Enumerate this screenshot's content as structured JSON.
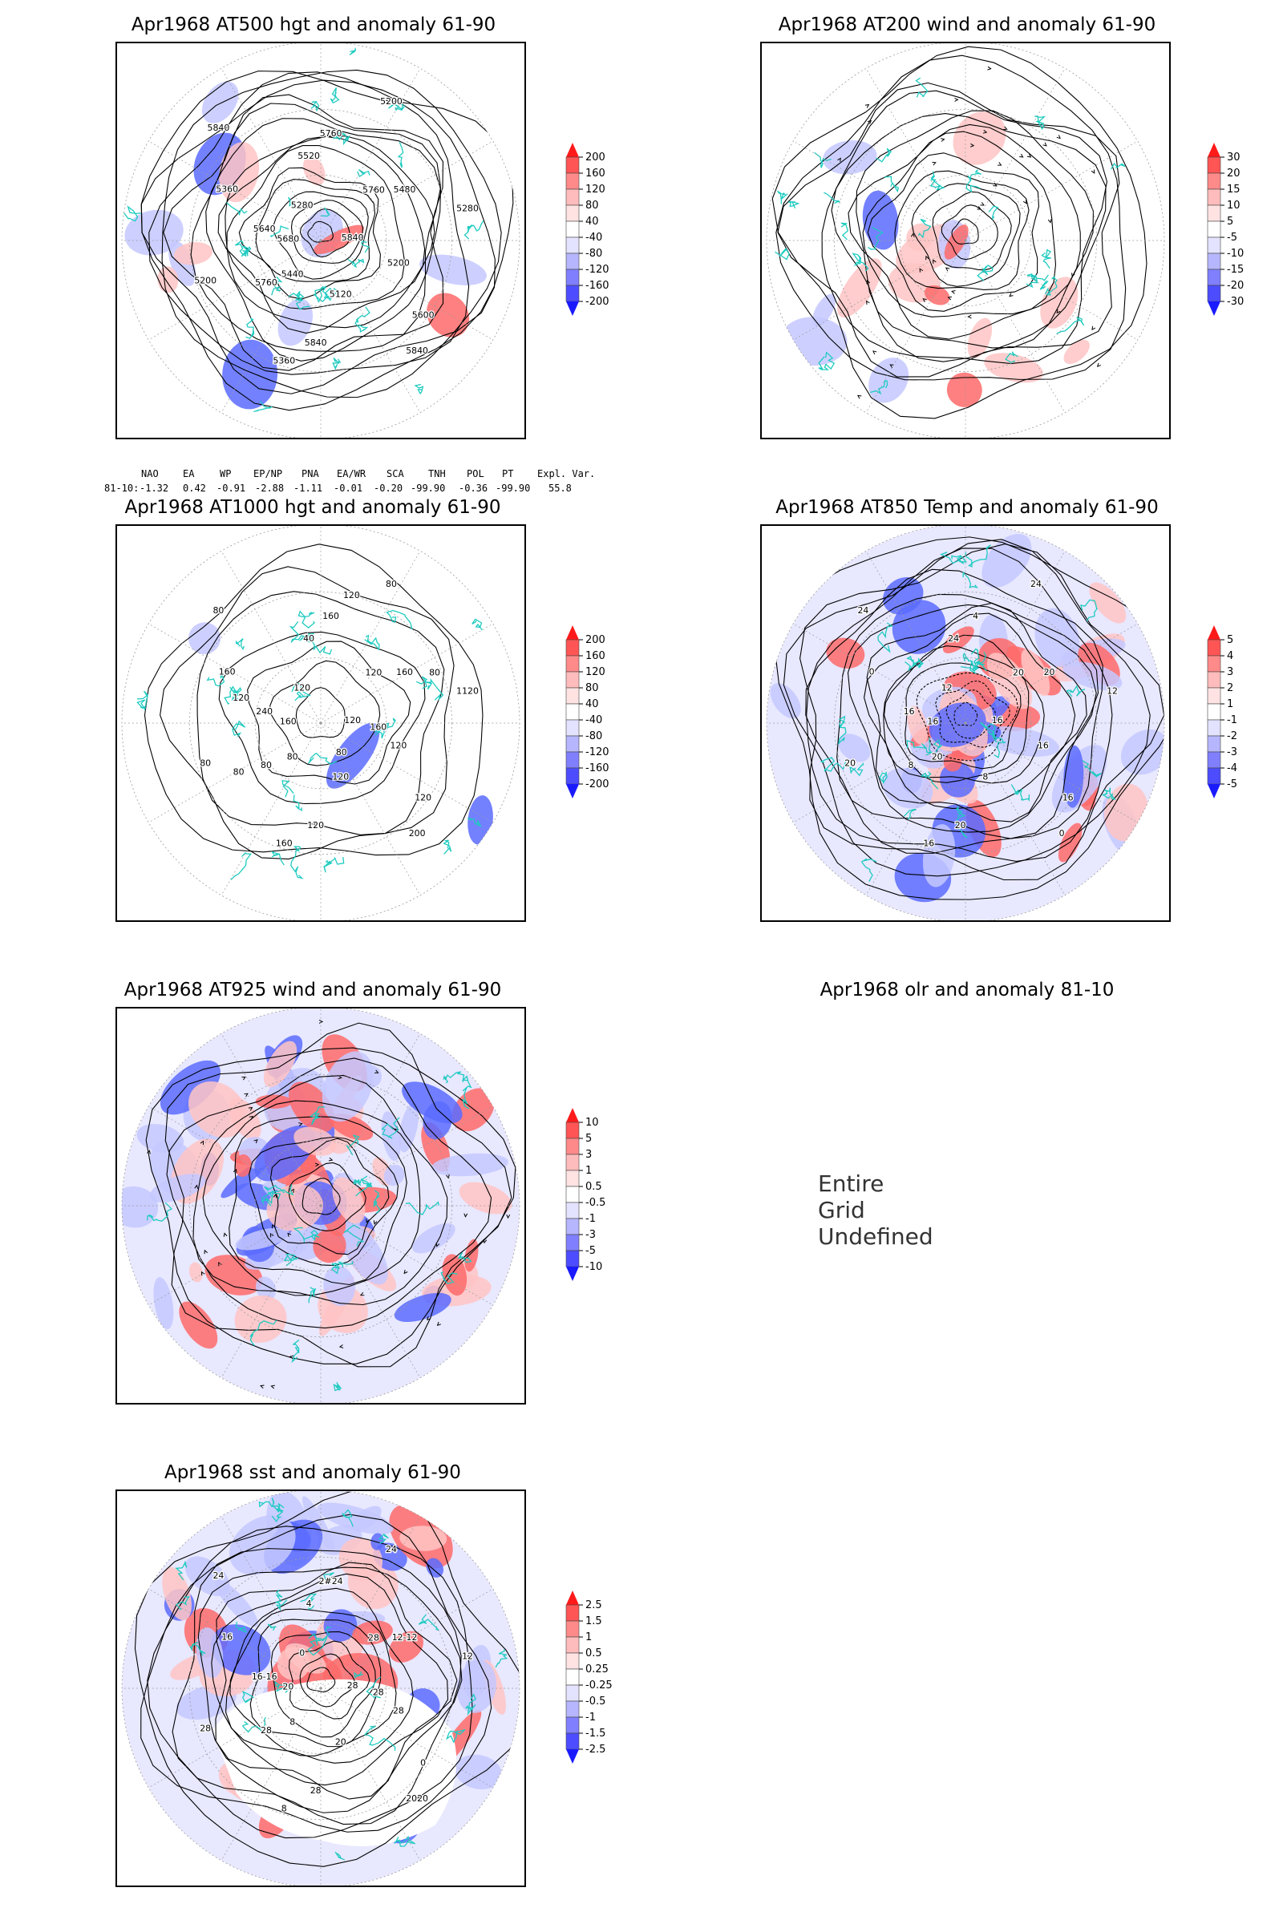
{
  "panels": {
    "p1": {
      "title": "Apr1968 AT500 hgt and anomaly 61-90",
      "colorbar": [
        "200",
        "160",
        "120",
        "80",
        "40",
        "-40",
        "-80",
        "-120",
        "-160",
        "-200"
      ],
      "contour_labels": [
        "5840",
        "5760",
        "5760",
        "5840",
        "5640",
        "5480",
        "5360",
        "5280",
        "5200",
        "5200",
        "5200",
        "5120",
        "5360",
        "5280",
        "5440",
        "5520",
        "5600",
        "5680",
        "5760",
        "5840",
        "5840"
      ]
    },
    "p2": {
      "title": "Apr1968 AT200 wind and anomaly 61-90",
      "colorbar": [
        "30",
        "20",
        "15",
        "10",
        "5",
        "-5",
        "-10",
        "-15",
        "-20",
        "-30"
      ]
    },
    "p3": {
      "title": "Apr1968 AT1000 hgt and anomaly 61-90",
      "colorbar": [
        "200",
        "160",
        "120",
        "80",
        "40",
        "-40",
        "-80",
        "-120",
        "-160",
        "-200"
      ],
      "contour_labels": [
        "120",
        "80",
        "160",
        "200",
        "240",
        "160",
        "160",
        "120",
        "120",
        "80",
        "80",
        "120",
        "160",
        "1120",
        "80",
        "40",
        "120",
        "160",
        "120",
        "120",
        "80",
        "160",
        "80",
        "120",
        "80",
        "120",
        "80"
      ]
    },
    "p4": {
      "title": "Apr1968 AT850 Temp and anomaly 61-90",
      "colorbar": [
        "5",
        "4",
        "3",
        "2",
        "1",
        "-1",
        "-2",
        "-3",
        "-4",
        "-5"
      ],
      "contour_labels": [
        "16",
        "8",
        "4",
        "0",
        "16",
        "20",
        "16",
        "12",
        "16",
        "20",
        "24",
        "8",
        "0",
        "12",
        "20",
        "24",
        "16",
        "16",
        "20",
        "20",
        "24"
      ]
    },
    "p5": {
      "title": "Apr1968 AT925 wind and anomaly 61-90",
      "colorbar": [
        "10",
        "5",
        "3",
        "1",
        "0.5",
        "-0.5",
        "-1",
        "-3",
        "-5",
        "-10"
      ]
    },
    "p6": {
      "title": "Apr1968 olr and anomaly 81-10",
      "message": "Entire Grid Undefined"
    },
    "p7": {
      "title": "Apr1968 sst and anomaly 61-90",
      "colorbar": [
        "2.5",
        "1.5",
        "1",
        "0.5",
        "0.25",
        "-0.25",
        "-0.5",
        "-1",
        "-1.5",
        "-2.5"
      ],
      "contour_labels": [
        "28",
        "28",
        "2#24",
        "2020",
        "16-16",
        "12-12",
        "8",
        "0",
        "28",
        "28",
        "24",
        "20",
        "16",
        "12",
        "8",
        "4",
        "0",
        "20",
        "28",
        "28",
        "24",
        "28"
      ]
    }
  },
  "indices": {
    "header": [
      "NAO",
      "EA",
      "WP",
      "EP/NP",
      "PNA",
      "EA/WR",
      "SCA",
      "TNH",
      "POL",
      "PT",
      "Expl. Var."
    ],
    "row_label": "81-10:",
    "values": [
      "-1.32",
      "0.42",
      "-0.91",
      "-2.88",
      "-1.11",
      "-0.01",
      "-0.20",
      "-99.90",
      "-0.36",
      "-99.90",
      "55.8"
    ]
  },
  "colors": {
    "land_outline": "#1ecbc0",
    "positive_anomaly": "#ff4040",
    "negative_anomaly": "#3a4cff",
    "contour": "#000000",
    "grid": "#9a9a9a"
  }
}
